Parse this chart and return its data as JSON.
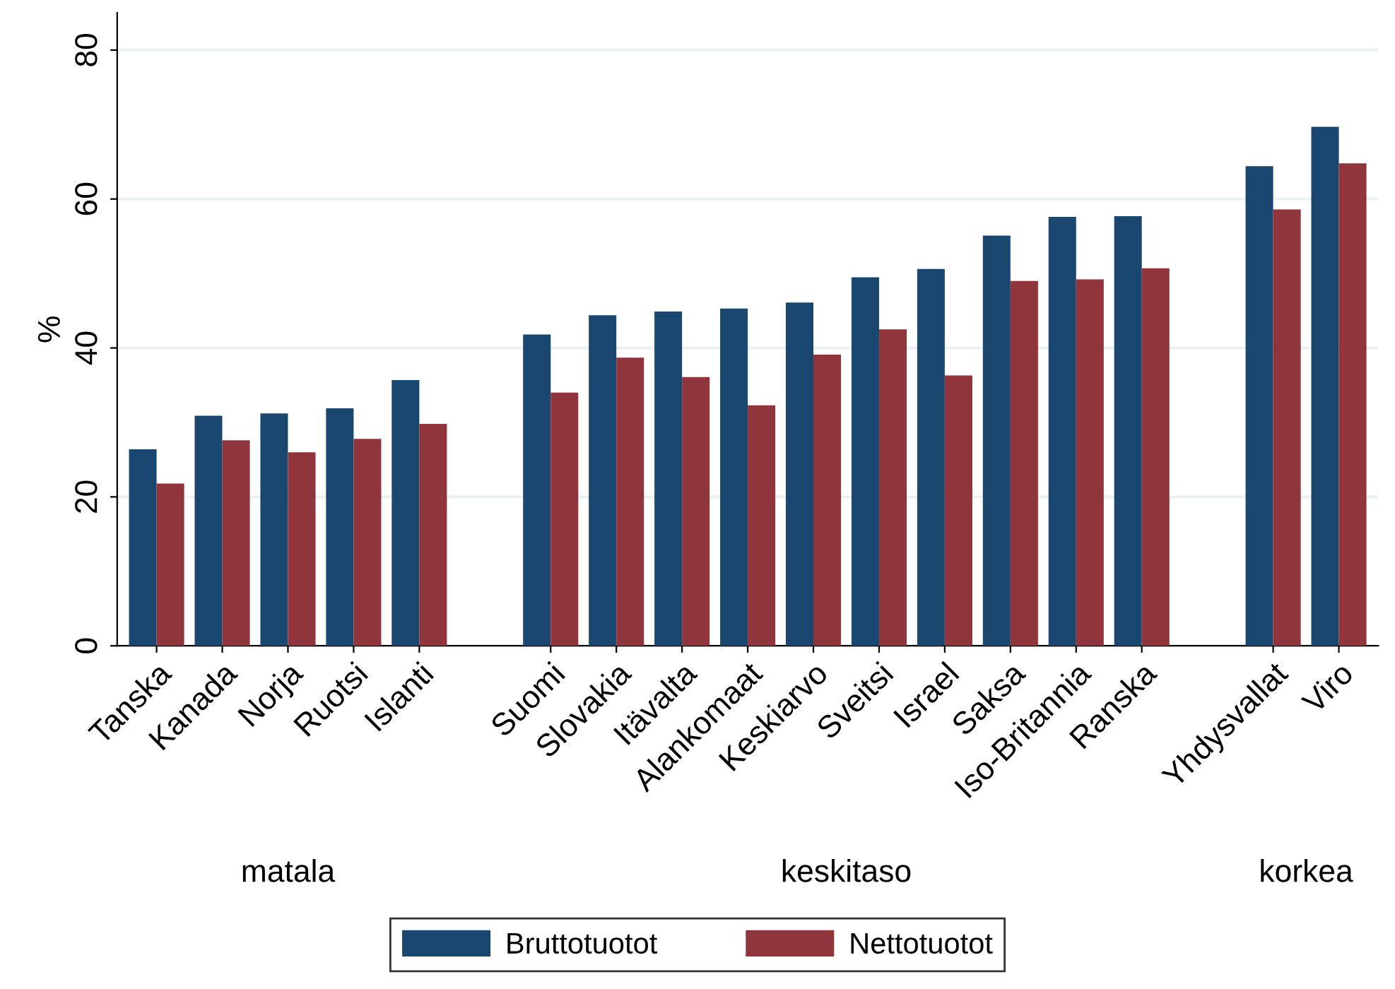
{
  "chart_data": {
    "type": "bar",
    "ylabel": "%",
    "categories": [
      "Tanska",
      "Kanada",
      "Norja",
      "Ruotsi",
      "Islanti",
      null,
      "Suomi",
      "Slovakia",
      "Itävalta",
      "Alankomaat",
      "Keskiarvo",
      "Sveitsi",
      "Israel",
      "Saksa",
      "Iso-Britannia",
      "Ranska",
      null,
      "Yhdysvallat",
      "Viro"
    ],
    "series": [
      {
        "name": "Bruttotuotot",
        "color": "#1a476f",
        "values": [
          26.4,
          30.9,
          31.2,
          31.9,
          35.7,
          null,
          41.8,
          44.4,
          44.9,
          45.3,
          46.1,
          49.5,
          50.6,
          55.1,
          57.6,
          57.7,
          null,
          64.4,
          69.7
        ]
      },
      {
        "name": "Nettotuotot",
        "color": "#90353b",
        "values": [
          21.8,
          27.6,
          26.0,
          27.8,
          29.8,
          null,
          34.0,
          38.7,
          36.1,
          32.3,
          39.1,
          42.5,
          36.3,
          49.0,
          49.2,
          50.7,
          null,
          58.6,
          64.8
        ]
      }
    ],
    "annotations": [
      "matala",
      "keskitaso",
      "korkea"
    ],
    "ylim": [
      0,
      85
    ],
    "yticks": [
      0,
      20,
      40,
      60,
      80
    ],
    "grid": "y",
    "legend": "bottom"
  }
}
